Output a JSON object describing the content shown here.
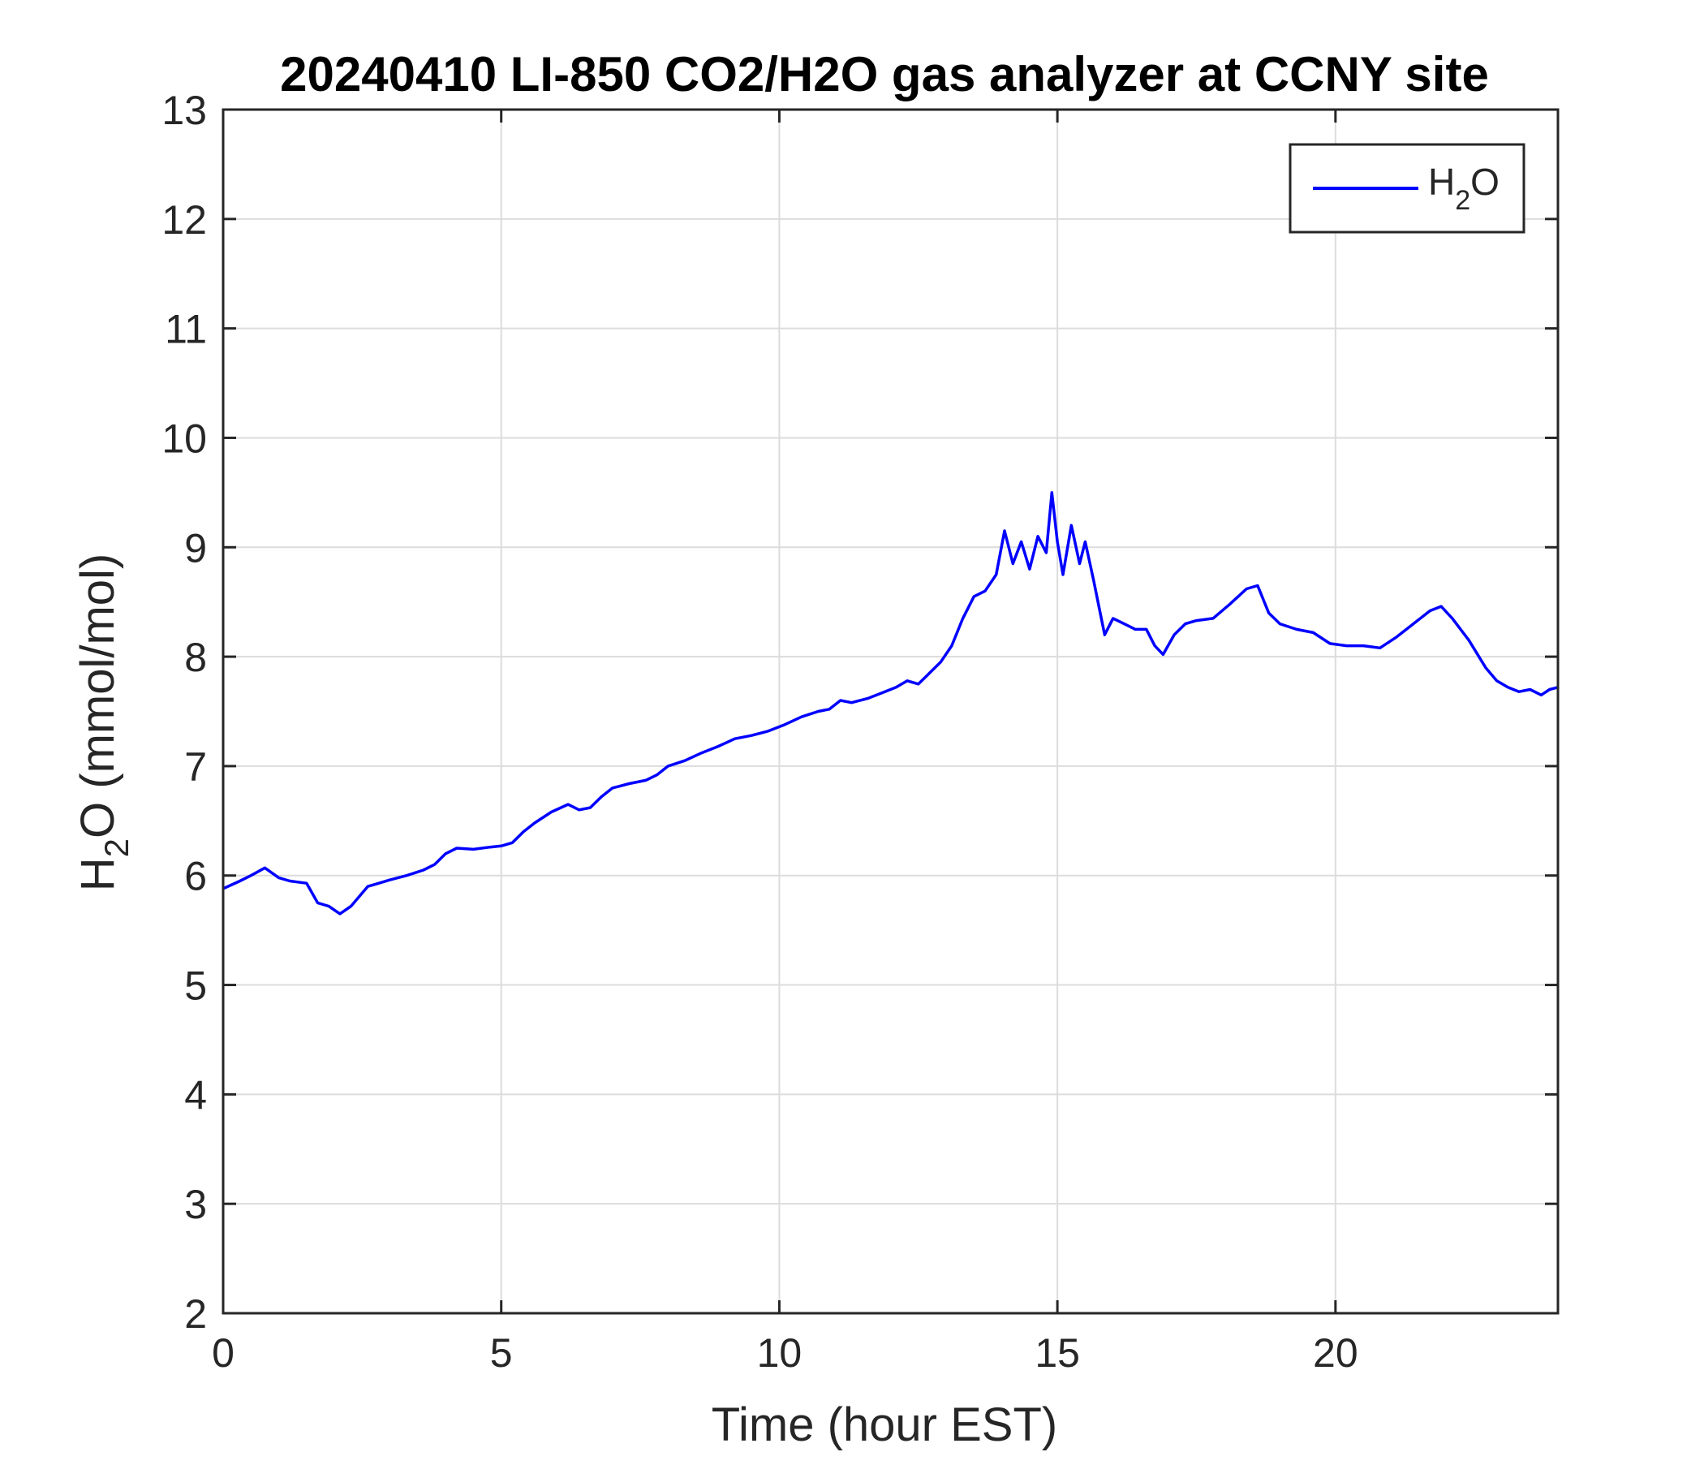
{
  "chart_data": {
    "type": "line",
    "title": "20240410 LI-850 CO2/H2O gas analyzer at CCNY site",
    "xlabel": "Time (hour EST)",
    "ylabel": {
      "main": "H",
      "sub": "2",
      "rest": "O (mmol/mol)"
    },
    "xlim": [
      0,
      24
    ],
    "ylim": [
      2,
      13
    ],
    "xticks": [
      0,
      5,
      10,
      15,
      20
    ],
    "yticks": [
      2,
      3,
      4,
      5,
      6,
      7,
      8,
      9,
      10,
      11,
      12,
      13
    ],
    "grid": true,
    "legend_position": "top-right",
    "series": [
      {
        "name": {
          "main": "H",
          "sub": "2",
          "rest": "O"
        },
        "color": "#0000ff",
        "x": [
          0,
          0.3,
          0.5,
          0.75,
          1.0,
          1.2,
          1.5,
          1.7,
          1.9,
          2.1,
          2.3,
          2.6,
          2.8,
          3.0,
          3.3,
          3.6,
          3.8,
          4.0,
          4.2,
          4.5,
          4.8,
          5.0,
          5.2,
          5.4,
          5.6,
          5.9,
          6.2,
          6.4,
          6.6,
          6.8,
          7.0,
          7.3,
          7.6,
          7.8,
          8.0,
          8.3,
          8.6,
          8.9,
          9.2,
          9.5,
          9.8,
          10.1,
          10.4,
          10.7,
          10.9,
          11.1,
          11.3,
          11.6,
          11.9,
          12.1,
          12.3,
          12.5,
          12.7,
          12.9,
          13.1,
          13.3,
          13.5,
          13.7,
          13.9,
          14.05,
          14.2,
          14.35,
          14.5,
          14.65,
          14.8,
          14.9,
          15.0,
          15.1,
          15.25,
          15.4,
          15.5,
          15.65,
          15.75,
          15.85,
          16.0,
          16.2,
          16.4,
          16.6,
          16.75,
          16.9,
          17.1,
          17.3,
          17.5,
          17.8,
          18.1,
          18.4,
          18.6,
          18.8,
          19.0,
          19.3,
          19.6,
          19.9,
          20.2,
          20.5,
          20.8,
          21.1,
          21.4,
          21.7,
          21.9,
          22.1,
          22.4,
          22.7,
          22.9,
          23.1,
          23.3,
          23.5,
          23.7,
          23.85,
          24.0
        ],
        "y": [
          5.88,
          5.95,
          6.0,
          6.07,
          5.98,
          5.95,
          5.93,
          5.75,
          5.72,
          5.65,
          5.72,
          5.9,
          5.93,
          5.96,
          6.0,
          6.05,
          6.1,
          6.2,
          6.25,
          6.24,
          6.26,
          6.27,
          6.3,
          6.4,
          6.48,
          6.58,
          6.65,
          6.6,
          6.62,
          6.72,
          6.8,
          6.84,
          6.87,
          6.92,
          7.0,
          7.05,
          7.12,
          7.18,
          7.25,
          7.28,
          7.32,
          7.38,
          7.45,
          7.5,
          7.52,
          7.6,
          7.58,
          7.62,
          7.68,
          7.72,
          7.78,
          7.75,
          7.85,
          7.95,
          8.1,
          8.35,
          8.55,
          8.6,
          8.75,
          9.15,
          8.85,
          9.05,
          8.8,
          9.1,
          8.95,
          9.5,
          9.05,
          8.75,
          9.2,
          8.85,
          9.05,
          8.7,
          8.45,
          8.2,
          8.35,
          8.3,
          8.25,
          8.25,
          8.1,
          8.02,
          8.2,
          8.3,
          8.33,
          8.35,
          8.48,
          8.62,
          8.65,
          8.4,
          8.3,
          8.25,
          8.22,
          8.12,
          8.1,
          8.1,
          8.08,
          8.18,
          8.3,
          8.42,
          8.46,
          8.35,
          8.15,
          7.9,
          7.78,
          7.72,
          7.68,
          7.7,
          7.65,
          7.7,
          7.72
        ]
      }
    ]
  }
}
